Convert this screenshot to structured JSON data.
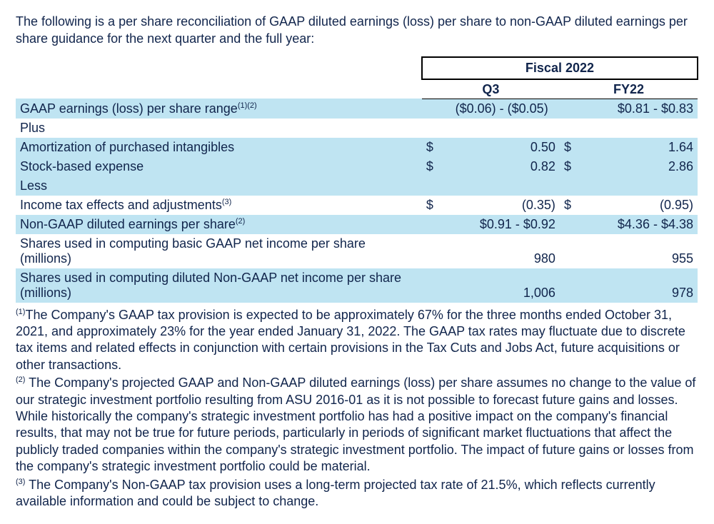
{
  "intro": "The following is a per share reconciliation of GAAP diluted earnings (loss) per share to non-GAAP diluted earnings per share guidance for the next quarter and the full year:",
  "colors": {
    "stripe": "#bfe4f2",
    "text": "#11254c",
    "background": "#ffffff"
  },
  "columns": {
    "fiscal_header": "Fiscal 2022",
    "q3": "Q3",
    "fy22": "FY22"
  },
  "rows": {
    "gaap_eps_range": {
      "label": "GAAP earnings (loss) per share range",
      "sup": "(1)(2)",
      "q3": "($0.06) - ($0.05)",
      "fy22": "$0.81 - $0.83"
    },
    "plus_label": "Plus",
    "amortization": {
      "label": "Amortization of purchased intangibles",
      "q3_sym": "$",
      "q3": "0.50",
      "fy22_sym": "$",
      "fy22": "1.64"
    },
    "stock_expense": {
      "label": "Stock-based expense",
      "q3_sym": "$",
      "q3": "0.82",
      "fy22_sym": "$",
      "fy22": "2.86"
    },
    "less_label": "Less",
    "tax_effects": {
      "label": "Income tax effects and adjustments",
      "sup": "(3)",
      "q3_sym": "$",
      "q3": "(0.35)",
      "fy22_sym": "$",
      "fy22": "(0.95)"
    },
    "nongaap_eps": {
      "label": "Non-GAAP diluted earnings per share",
      "sup": "(2)",
      "q3": "$0.91 - $0.92",
      "fy22": "$4.36 - $4.38"
    },
    "basic_shares": {
      "label": "Shares used in computing basic GAAP net income per share (millions)",
      "q3": "980",
      "fy22": "955"
    },
    "diluted_shares": {
      "label": "Shares used in computing diluted Non-GAAP net income per share (millions)",
      "q3": "1,006",
      "fy22": "978"
    }
  },
  "footnotes": {
    "f1_sup": "(1)",
    "f1": "The Company's GAAP tax provision is expected to be approximately 67% for the three months ended October 31, 2021, and approximately 23% for the year ended January 31, 2022. The GAAP tax rates may fluctuate due to discrete tax items and related effects in conjunction with certain provisions in the Tax Cuts and Jobs Act, future acquisitions or other transactions.",
    "f2_sup": "(2)",
    "f2": " The Company's projected GAAP and Non-GAAP diluted earnings (loss) per share assumes no change to the value of our strategic investment portfolio resulting from ASU 2016-01 as it is not possible to forecast future gains and losses. While historically the company's strategic investment portfolio has had a positive impact on the company's financial results, that may not be true for future periods, particularly in periods of significant market fluctuations that affect the publicly traded companies within the company's strategic investment portfolio. The impact of future gains or losses from the company's strategic investment portfolio could be material.",
    "f3_sup": "(3)",
    "f3": " The Company's Non-GAAP tax provision uses a long-term projected tax rate of 21.5%, which reflects currently available information and could be subject to change."
  }
}
